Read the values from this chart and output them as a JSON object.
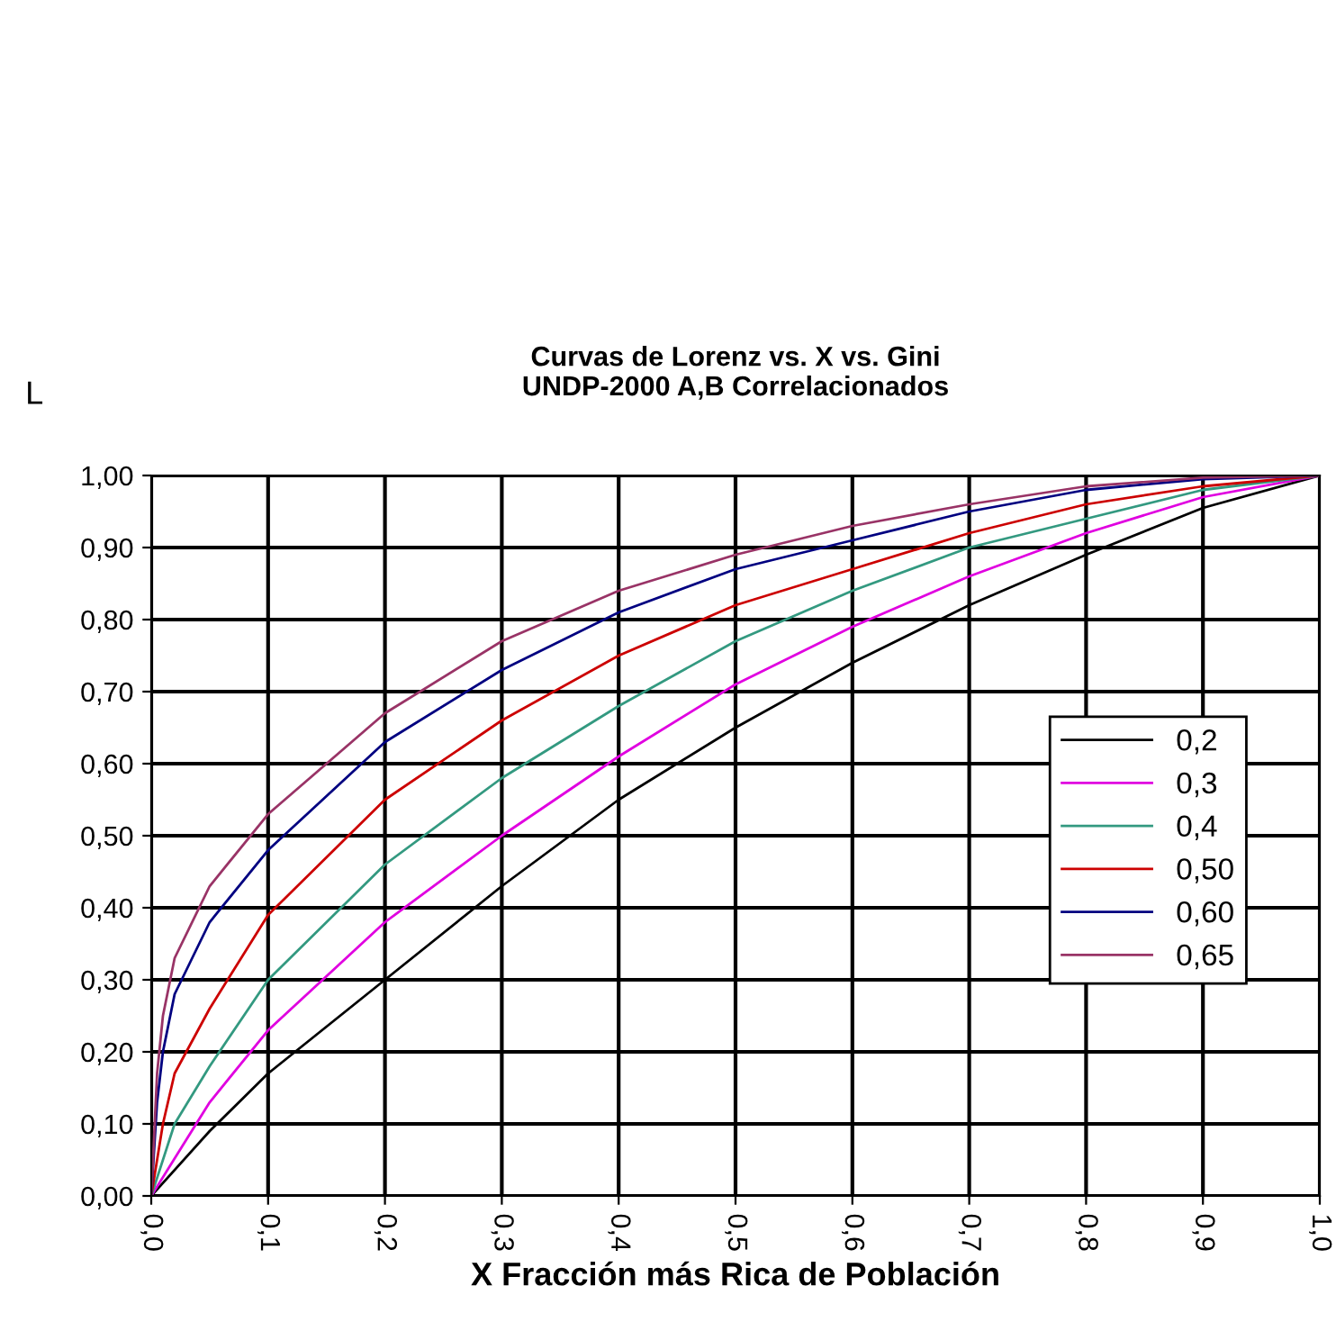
{
  "chart_data": {
    "type": "line",
    "title": "Curvas de Lorenz vs. X vs. Gini\nUNDP-2000 A,B Correlacionados",
    "xlabel": "X Fracción más Rica de Población",
    "ylabel": "L",
    "xlim": [
      0,
      1
    ],
    "ylim": [
      0,
      1
    ],
    "xticks": [
      {
        "value": 0,
        "label": "0,0"
      },
      {
        "value": 0.1,
        "label": "0,1"
      },
      {
        "value": 0.2,
        "label": "0,2"
      },
      {
        "value": 0.3,
        "label": "0,3"
      },
      {
        "value": 0.4,
        "label": "0,4"
      },
      {
        "value": 0.5,
        "label": "0,5"
      },
      {
        "value": 0.6,
        "label": "0,6"
      },
      {
        "value": 0.7,
        "label": "0,7"
      },
      {
        "value": 0.8,
        "label": "0,8"
      },
      {
        "value": 0.9,
        "label": "0,9"
      },
      {
        "value": 1,
        "label": "1,0"
      }
    ],
    "yticks": [
      {
        "value": 0,
        "label": "0,00"
      },
      {
        "value": 0.1,
        "label": "0,10"
      },
      {
        "value": 0.2,
        "label": "0,20"
      },
      {
        "value": 0.3,
        "label": "0,30"
      },
      {
        "value": 0.4,
        "label": "0,40"
      },
      {
        "value": 0.5,
        "label": "0,50"
      },
      {
        "value": 0.6,
        "label": "0,60"
      },
      {
        "value": 0.7,
        "label": "0,70"
      },
      {
        "value": 0.8,
        "label": "0,80"
      },
      {
        "value": 0.9,
        "label": "0,90"
      },
      {
        "value": 1,
        "label": "1,00"
      }
    ],
    "grid": true,
    "legend": "right",
    "marker": "none",
    "line_style": "solid",
    "series": [
      {
        "name": "0,2",
        "color": "#000000",
        "x": [
          0,
          0.05,
          0.1,
          0.2,
          0.3,
          0.4,
          0.5,
          0.6,
          0.7,
          0.8,
          0.9,
          1
        ],
        "values": [
          0,
          0.09,
          0.17,
          0.3,
          0.43,
          0.55,
          0.65,
          0.74,
          0.82,
          0.89,
          0.955,
          1
        ]
      },
      {
        "name": "0,3",
        "color": "#e000e0",
        "x": [
          0,
          0.05,
          0.1,
          0.2,
          0.3,
          0.4,
          0.5,
          0.6,
          0.7,
          0.8,
          0.9,
          1
        ],
        "values": [
          0,
          0.13,
          0.23,
          0.38,
          0.5,
          0.61,
          0.71,
          0.79,
          0.86,
          0.92,
          0.97,
          1
        ]
      },
      {
        "name": "0,4",
        "color": "#339980",
        "x": [
          0,
          0.02,
          0.05,
          0.1,
          0.2,
          0.3,
          0.4,
          0.5,
          0.6,
          0.7,
          0.8,
          0.9,
          1
        ],
        "values": [
          0,
          0.1,
          0.18,
          0.3,
          0.46,
          0.58,
          0.68,
          0.77,
          0.84,
          0.9,
          0.94,
          0.98,
          1
        ]
      },
      {
        "name": "0,50",
        "color": "#cc0000",
        "x": [
          0,
          0.01,
          0.02,
          0.05,
          0.1,
          0.2,
          0.3,
          0.4,
          0.5,
          0.6,
          0.7,
          0.8,
          0.9,
          1
        ],
        "values": [
          0,
          0.1,
          0.17,
          0.26,
          0.39,
          0.55,
          0.66,
          0.75,
          0.82,
          0.87,
          0.92,
          0.96,
          0.985,
          1
        ]
      },
      {
        "name": "0,60",
        "color": "#000080",
        "x": [
          0,
          0.005,
          0.01,
          0.02,
          0.05,
          0.1,
          0.2,
          0.3,
          0.4,
          0.5,
          0.6,
          0.7,
          0.8,
          0.9,
          1
        ],
        "values": [
          0,
          0.13,
          0.2,
          0.28,
          0.38,
          0.48,
          0.63,
          0.73,
          0.81,
          0.87,
          0.91,
          0.95,
          0.98,
          0.995,
          1
        ]
      },
      {
        "name": "0,65",
        "color": "#993366",
        "x": [
          0,
          0.005,
          0.01,
          0.02,
          0.05,
          0.1,
          0.2,
          0.3,
          0.4,
          0.5,
          0.6,
          0.7,
          0.8,
          0.9,
          1
        ],
        "values": [
          0,
          0.17,
          0.25,
          0.33,
          0.43,
          0.53,
          0.67,
          0.77,
          0.84,
          0.89,
          0.93,
          0.96,
          0.985,
          0.997,
          1
        ]
      }
    ]
  }
}
